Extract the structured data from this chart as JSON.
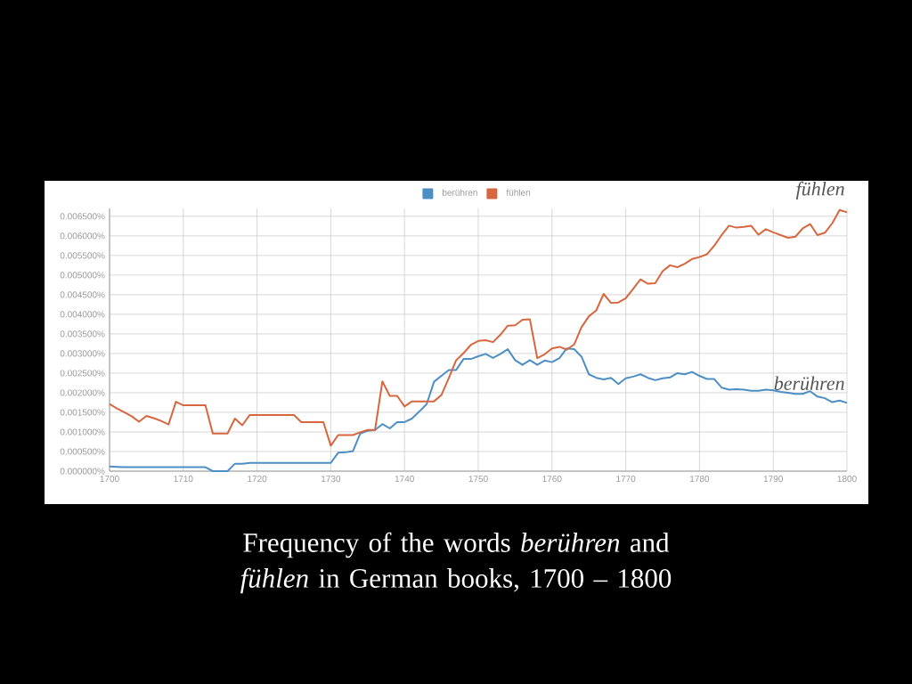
{
  "chart_data": {
    "type": "line",
    "title": "Frequency of the words *berühren* and *fühlen* in German books, 1700 – 1800",
    "x": [
      1700,
      1701,
      1702,
      1703,
      1704,
      1705,
      1706,
      1707,
      1708,
      1709,
      1710,
      1711,
      1712,
      1713,
      1714,
      1715,
      1716,
      1717,
      1718,
      1719,
      1720,
      1721,
      1722,
      1723,
      1724,
      1725,
      1726,
      1727,
      1728,
      1729,
      1730,
      1731,
      1732,
      1733,
      1734,
      1735,
      1736,
      1737,
      1738,
      1739,
      1740,
      1741,
      1742,
      1743,
      1744,
      1745,
      1746,
      1747,
      1748,
      1749,
      1750,
      1751,
      1752,
      1753,
      1754,
      1755,
      1756,
      1757,
      1758,
      1759,
      1760,
      1761,
      1762,
      1763,
      1764,
      1765,
      1766,
      1767,
      1768,
      1769,
      1770,
      1771,
      1772,
      1773,
      1774,
      1775,
      1776,
      1777,
      1778,
      1779,
      1780,
      1781,
      1782,
      1783,
      1784,
      1785,
      1786,
      1787,
      1788,
      1789,
      1790,
      1791,
      1792,
      1793,
      1794,
      1795,
      1796,
      1797,
      1798,
      1799,
      1800
    ],
    "series": [
      {
        "name": "berühren",
        "color": "#4d8fc4",
        "values": [
          0.00012,
          0.00011,
          0.0001,
          0.0001,
          0.0001,
          0.0001,
          0.0001,
          0.0001,
          0.0001,
          0.0001,
          0.0001,
          0.0001,
          0.0001,
          0.0001,
          0,
          0,
          0,
          0.00019,
          0.00019,
          0.00021,
          0.00021,
          0.00021,
          0.00021,
          0.00021,
          0.00021,
          0.00021,
          0.00021,
          0.00021,
          0.00021,
          0.00021,
          0.00021,
          0.00047,
          0.00048,
          0.00051,
          0.00096,
          0.00103,
          0.00105,
          0.0012,
          0.00109,
          0.00125,
          0.00125,
          0.00134,
          0.00152,
          0.00171,
          0.00228,
          0.00243,
          0.00258,
          0.00258,
          0.00286,
          0.00286,
          0.00293,
          0.00299,
          0.00289,
          0.00299,
          0.00311,
          0.00283,
          0.00271,
          0.00283,
          0.00271,
          0.00282,
          0.00278,
          0.00288,
          0.00313,
          0.00311,
          0.00292,
          0.00247,
          0.00238,
          0.00234,
          0.00238,
          0.00222,
          0.00237,
          0.00241,
          0.00247,
          0.00238,
          0.00232,
          0.00237,
          0.00239,
          0.0025,
          0.00247,
          0.00253,
          0.00243,
          0.00235,
          0.00235,
          0.00213,
          0.00208,
          0.00209,
          0.00208,
          0.00205,
          0.00205,
          0.00208,
          0.00206,
          0.00202,
          0.002,
          0.00197,
          0.00197,
          0.00204,
          0.0019,
          0.00186,
          0.00176,
          0.0018,
          0.00174
        ]
      },
      {
        "name": "fühlen",
        "color": "#d7673f",
        "values": [
          0.00171,
          0.0016,
          0.0015,
          0.0014,
          0.00126,
          0.00141,
          0.00135,
          0.00128,
          0.00119,
          0.00177,
          0.00168,
          0.00168,
          0.00168,
          0.00168,
          0.00096,
          0.00096,
          0.00096,
          0.00134,
          0.00117,
          0.00143,
          0.00143,
          0.00143,
          0.00143,
          0.00143,
          0.00143,
          0.00143,
          0.00125,
          0.00125,
          0.00125,
          0.00125,
          0.00065,
          0.00092,
          0.00092,
          0.00092,
          0.00099,
          0.00105,
          0.00105,
          0.00229,
          0.00192,
          0.00192,
          0.00165,
          0.00178,
          0.00178,
          0.00178,
          0.00178,
          0.00194,
          0.00237,
          0.00283,
          0.00301,
          0.00322,
          0.00332,
          0.00334,
          0.00329,
          0.00348,
          0.00371,
          0.00372,
          0.00386,
          0.00387,
          0.00288,
          0.00298,
          0.00313,
          0.00317,
          0.0031,
          0.00323,
          0.00367,
          0.00395,
          0.0041,
          0.00452,
          0.00429,
          0.0043,
          0.00441,
          0.00465,
          0.00489,
          0.00478,
          0.00479,
          0.0051,
          0.00525,
          0.0052,
          0.00529,
          0.00541,
          0.00546,
          0.00553,
          0.00575,
          0.00602,
          0.00626,
          0.00621,
          0.00623,
          0.00626,
          0.00603,
          0.00617,
          0.00609,
          0.00602,
          0.00595,
          0.00598,
          0.00619,
          0.0063,
          0.00602,
          0.00608,
          0.00632,
          0.00666,
          0.0066
        ]
      }
    ],
    "xlim": [
      1700,
      1800
    ],
    "xticks": [
      1700,
      1710,
      1720,
      1730,
      1740,
      1750,
      1760,
      1770,
      1780,
      1790,
      1800
    ],
    "ylim": [
      0,
      0.0067
    ],
    "yticks": [
      {
        "value": 0,
        "label": "0.000000%"
      },
      {
        "value": 0.0005,
        "label": "0.000500%"
      },
      {
        "value": 0.001,
        "label": "0.001000%"
      },
      {
        "value": 0.0015,
        "label": "0.001500%"
      },
      {
        "value": 0.002,
        "label": "0.002000%"
      },
      {
        "value": 0.0025,
        "label": "0.002500%"
      },
      {
        "value": 0.003,
        "label": "0.003000%"
      },
      {
        "value": 0.0035,
        "label": "0.003500%"
      },
      {
        "value": 0.004,
        "label": "0.004000%"
      },
      {
        "value": 0.0045,
        "label": "0.004500%"
      },
      {
        "value": 0.005,
        "label": "0.005000%"
      },
      {
        "value": 0.0055,
        "label": "0.005500%"
      },
      {
        "value": 0.006,
        "label": "0.006000%"
      },
      {
        "value": 0.0065,
        "label": "0.006500%"
      }
    ],
    "annotations": [
      "berühren",
      "fühlen"
    ],
    "grid": true,
    "legend": "top",
    "marker": "none",
    "line_style": "solid"
  }
}
